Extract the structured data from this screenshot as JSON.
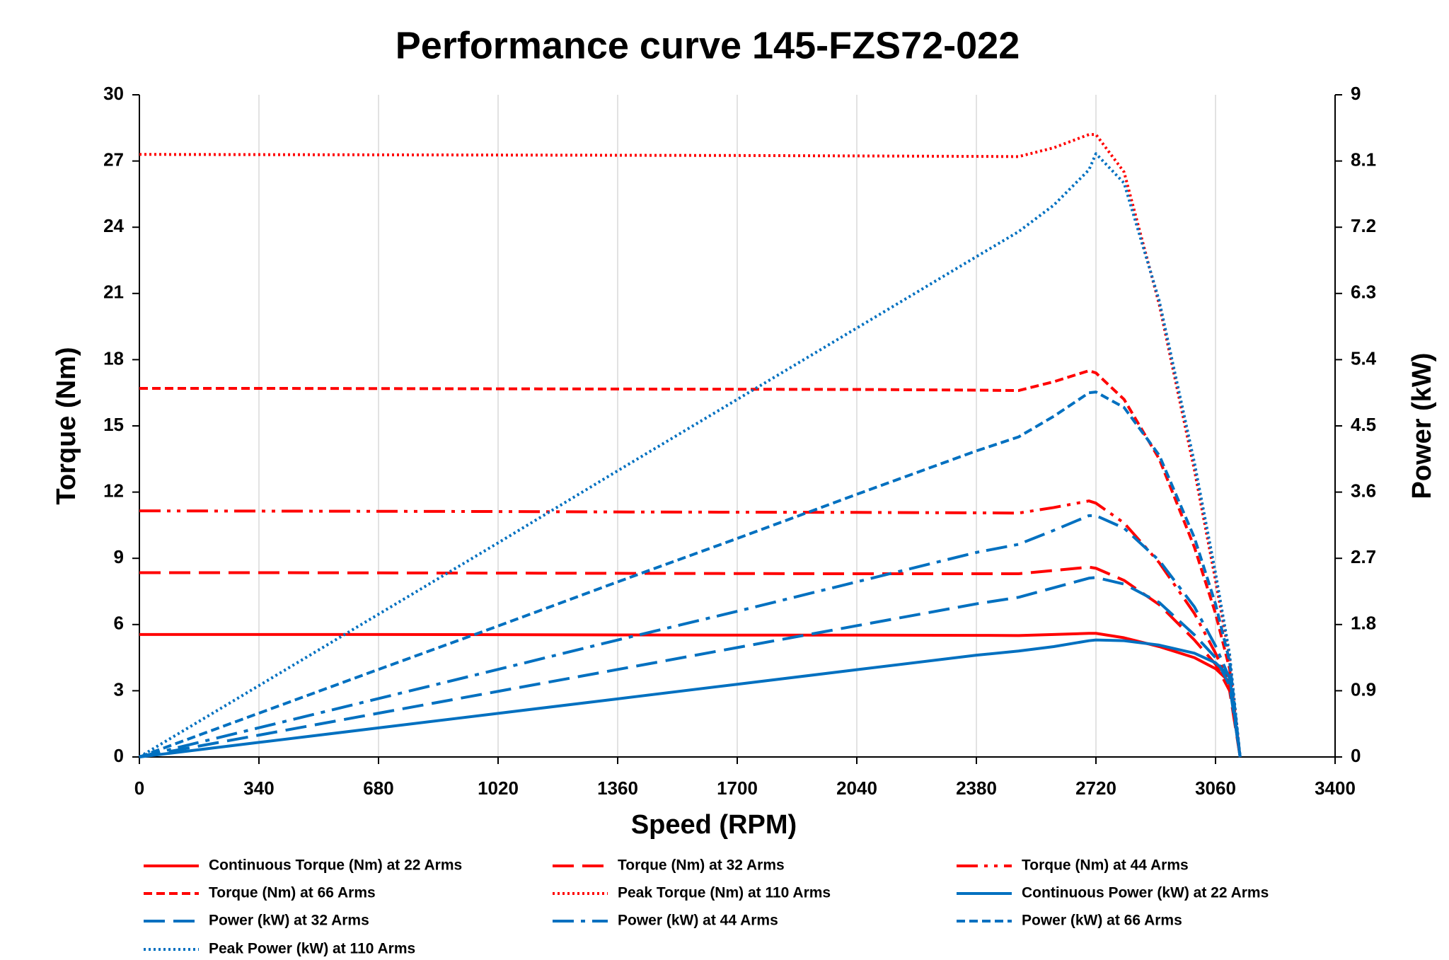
{
  "chart_data": {
    "type": "line",
    "title": "Performance curve 145-FZS72-022",
    "x_label": "Speed (RPM)",
    "y_label": "Torque (Nm)",
    "y2_label": "Power (kW)",
    "x": [
      0,
      340,
      680,
      1020,
      1360,
      1700,
      2040,
      2380,
      2500,
      2600,
      2700,
      2720,
      2800,
      2900,
      3000,
      3060,
      3100,
      3130
    ],
    "xlim": [
      0,
      3400
    ],
    "xticks": [
      0,
      340,
      680,
      1020,
      1360,
      1700,
      2040,
      2380,
      2720,
      3060,
      3400
    ],
    "ylim": [
      0,
      30
    ],
    "yticks": [
      0,
      3,
      6,
      9,
      12,
      15,
      18,
      21,
      24,
      27,
      30
    ],
    "y2lim": [
      0,
      9
    ],
    "y2ticks": [
      0,
      0.9,
      1.8,
      2.7,
      3.6,
      4.5,
      5.4,
      6.3,
      7.2,
      8.1,
      9
    ],
    "grid": "x",
    "series": [
      {
        "name": "Continuous Torque (Nm) at 22 Arms",
        "color": "#ff0000",
        "dash": "solid",
        "axis": "y",
        "values": [
          5.55,
          5.55,
          5.55,
          5.54,
          5.53,
          5.52,
          5.52,
          5.51,
          5.5,
          5.55,
          5.6,
          5.6,
          5.4,
          5.0,
          4.5,
          4.0,
          3.4,
          0
        ]
      },
      {
        "name": "Torque (Nm) at 32 Arms",
        "color": "#ff0000",
        "dash": "long-dash",
        "axis": "y",
        "values": [
          8.35,
          8.35,
          8.34,
          8.33,
          8.32,
          8.31,
          8.3,
          8.3,
          8.3,
          8.45,
          8.6,
          8.55,
          8.0,
          6.9,
          5.3,
          4.2,
          3.0,
          0
        ]
      },
      {
        "name": "Torque (Nm) at 44 Arms",
        "color": "#ff0000",
        "dash": "dash-dot-dot",
        "axis": "y",
        "values": [
          11.15,
          11.14,
          11.13,
          11.12,
          11.1,
          11.09,
          11.08,
          11.06,
          11.05,
          11.3,
          11.6,
          11.5,
          10.6,
          8.8,
          6.5,
          4.7,
          3.3,
          0
        ]
      },
      {
        "name": "Torque (Nm) at 66 Arms",
        "color": "#ff0000",
        "dash": "short-dash",
        "axis": "y",
        "values": [
          16.7,
          16.7,
          16.69,
          16.68,
          16.67,
          16.66,
          16.65,
          16.62,
          16.6,
          17.0,
          17.5,
          17.4,
          16.2,
          13.5,
          9.5,
          6.5,
          4.0,
          0
        ]
      },
      {
        "name": "Peak Torque (Nm) at 110 Arms",
        "color": "#ff0000",
        "dash": "dotted",
        "axis": "y",
        "values": [
          27.3,
          27.29,
          27.28,
          27.27,
          27.26,
          27.25,
          27.23,
          27.21,
          27.2,
          27.6,
          28.2,
          28.2,
          26.5,
          20.5,
          13.0,
          8.0,
          4.5,
          0
        ]
      },
      {
        "name": "Continuous Power (kW) at 22 Arms",
        "color": "#0070c0",
        "dash": "solid",
        "axis": "y2",
        "values": [
          0,
          0.198,
          0.395,
          0.593,
          0.79,
          0.988,
          1.186,
          1.383,
          1.44,
          1.5,
          1.58,
          1.59,
          1.58,
          1.52,
          1.41,
          1.28,
          1.1,
          0
        ]
      },
      {
        "name": "Power (kW) at 32 Arms",
        "color": "#0070c0",
        "dash": "long-dash",
        "axis": "y2",
        "values": [
          0,
          0.297,
          0.595,
          0.892,
          1.189,
          1.487,
          1.784,
          2.081,
          2.17,
          2.3,
          2.43,
          2.44,
          2.35,
          2.1,
          1.66,
          1.35,
          0.97,
          0
        ]
      },
      {
        "name": "Power (kW) at 44 Arms",
        "color": "#0070c0",
        "dash": "dash-dot",
        "axis": "y2",
        "values": [
          0,
          0.397,
          0.794,
          1.19,
          1.59,
          1.98,
          2.38,
          2.78,
          2.89,
          3.08,
          3.28,
          3.28,
          3.11,
          2.67,
          2.04,
          1.51,
          1.07,
          0
        ]
      },
      {
        "name": "Power (kW) at 66 Arms",
        "color": "#0070c0",
        "dash": "short-dash",
        "axis": "y2",
        "values": [
          0,
          0.595,
          1.19,
          1.78,
          2.38,
          2.97,
          3.57,
          4.16,
          4.35,
          4.63,
          4.95,
          4.96,
          4.75,
          4.1,
          2.98,
          2.08,
          1.3,
          0
        ]
      },
      {
        "name": "Peak Power (kW) at 110 Arms",
        "color": "#0070c0",
        "dash": "dotted",
        "axis": "y2",
        "values": [
          0,
          0.97,
          1.94,
          2.91,
          3.89,
          4.86,
          5.83,
          6.8,
          7.14,
          7.5,
          7.98,
          8.2,
          7.8,
          6.2,
          4.0,
          2.5,
          1.4,
          0
        ]
      }
    ]
  }
}
